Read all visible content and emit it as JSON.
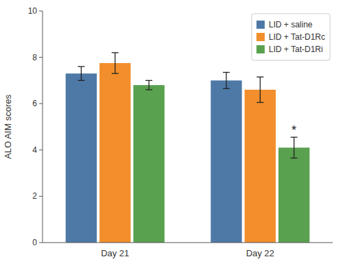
{
  "chart_data": {
    "type": "bar",
    "categories": [
      "Day 21",
      "Day 22"
    ],
    "series": [
      {
        "name": "LID + saline",
        "values": [
          7.3,
          7.0
        ],
        "errors": [
          0.3,
          0.35
        ]
      },
      {
        "name": "LID + Tat-D1Rc",
        "values": [
          7.75,
          6.6
        ],
        "errors": [
          0.45,
          0.55
        ]
      },
      {
        "name": "LID + Tat-D1Ri",
        "values": [
          6.8,
          4.1
        ],
        "errors": [
          0.2,
          0.45
        ]
      }
    ],
    "ylabel": "ALO AIM scores",
    "ylim": [
      0,
      10
    ],
    "yticks": [
      0,
      2,
      4,
      6,
      8,
      10
    ],
    "grid": false,
    "legend": "upper right",
    "annotations": [
      {
        "text": "*",
        "category": "Day 22",
        "series": "LID + Tat-D1Ri"
      }
    ]
  }
}
